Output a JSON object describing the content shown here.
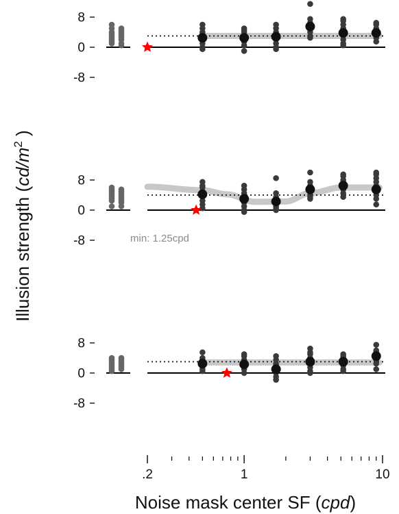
{
  "chart_data": {
    "type": "scatter",
    "ylabel": "Illusion strength (cd/m²)",
    "ylabel_prefix": "Illusion strength (",
    "ylabel_units": "cd/m",
    "ylabel_exp": "2",
    "ylabel_suffix": " )",
    "xlabel": "Noise mask center SF (cpd)",
    "xlabel_prefix": "Noise mask center SF (",
    "xlabel_units": "cpd",
    "xlabel_suffix": ")",
    "x_scale": "log",
    "xlim": [
      0.13,
      11
    ],
    "x_ticks": [
      {
        "value": 0.2,
        "label": ".2"
      },
      {
        "value": 1,
        "label": "1"
      },
      {
        "value": 10,
        "label": "10"
      }
    ],
    "y_ticks": [
      {
        "value": 8,
        "label": "8"
      },
      {
        "value": 0,
        "label": "0"
      },
      {
        "value": -8,
        "label": "-8"
      }
    ],
    "colors": {
      "points": "#3a3a3a",
      "baseline_points": "#666666",
      "mean_marker": "#111111",
      "fit_band": "#c8c8c8",
      "dotted_line": "#111111",
      "star": "#ff0000",
      "axis": "#000000"
    },
    "panels": [
      {
        "ylim": [
          -10,
          12
        ],
        "baseline_level": 3.0,
        "fit_curve": {
          "x": [
            0.5,
            1,
            2,
            4,
            9.5
          ],
          "y": [
            3.0,
            3.0,
            3.0,
            3.0,
            3.0
          ]
        },
        "min_star": {
          "x": 0.2,
          "y": 0
        },
        "annotation": "",
        "baseline_columns": [
          {
            "y": [
              6,
              5,
              4,
              3.5,
              3,
              2.5,
              2,
              1.5,
              1
            ]
          },
          {
            "y": [
              5,
              4.5,
              4,
              3.5,
              3,
              2.5,
              2,
              1,
              0.5
            ]
          }
        ],
        "sf_columns": [
          {
            "x": 0.5,
            "mean": 2.5,
            "y": [
              6,
              5,
              4,
              3.5,
              2.5,
              2,
              1,
              0,
              -0.5
            ]
          },
          {
            "x": 1.0,
            "mean": 2.5,
            "y": [
              5,
              4.5,
              4,
              3,
              2,
              1.5,
              0.5,
              -1
            ]
          },
          {
            "x": 1.7,
            "mean": 2.8,
            "y": [
              6,
              5,
              4,
              3.5,
              3,
              2,
              1,
              0,
              -0.5
            ]
          },
          {
            "x": 3.0,
            "mean": 5.5,
            "y": [
              11.5,
              7.5,
              6.5,
              6,
              5.5,
              5,
              4,
              3,
              2.5
            ]
          },
          {
            "x": 5.2,
            "mean": 3.8,
            "y": [
              7.5,
              7,
              6,
              5,
              4,
              3,
              2,
              1,
              0.5
            ]
          },
          {
            "x": 9.0,
            "mean": 3.8,
            "y": [
              6.5,
              6,
              5,
              4.5,
              4,
              3.5,
              3,
              2.5,
              1.5
            ]
          }
        ]
      },
      {
        "ylim": [
          -10,
          12
        ],
        "baseline_level": 4.0,
        "fit_curve": {
          "x": [
            0.2,
            0.5,
            0.75,
            1.2,
            2.0,
            3.0,
            5.0,
            9.5
          ],
          "y": [
            6.2,
            5.3,
            4.2,
            2.2,
            2.3,
            4.5,
            6.0,
            6.0
          ]
        },
        "min_star": {
          "x": 0.45,
          "y": 0
        },
        "annotation": "min: 1.25cpd",
        "baseline_columns": [
          {
            "y": [
              6,
              5.5,
              5,
              4.5,
              4,
              3.5,
              3,
              2.5,
              1
            ]
          },
          {
            "y": [
              5.5,
              5,
              4.5,
              4,
              3.5,
              3,
              2.5,
              2,
              1
            ]
          }
        ],
        "sf_columns": [
          {
            "x": 0.5,
            "mean": 4.2,
            "y": [
              7.5,
              6.5,
              6,
              5,
              4,
              3.5,
              2.5,
              1.5,
              0.5
            ]
          },
          {
            "x": 1.0,
            "mean": 3.0,
            "y": [
              6.5,
              5.5,
              4.5,
              3.5,
              2.5,
              2,
              1,
              0,
              -0.5
            ]
          },
          {
            "x": 1.7,
            "mean": 2.3,
            "y": [
              8.5,
              4.5,
              3.5,
              3,
              2,
              1,
              0.5,
              0
            ]
          },
          {
            "x": 3.0,
            "mean": 5.5,
            "y": [
              10,
              7.5,
              6.5,
              6,
              5.5,
              5,
              4,
              3.5,
              3
            ]
          },
          {
            "x": 5.2,
            "mean": 6.5,
            "y": [
              9.5,
              9,
              8,
              7.5,
              7,
              6,
              5.5,
              4.5,
              3.5
            ]
          },
          {
            "x": 9.0,
            "mean": 5.5,
            "y": [
              10,
              9.5,
              8.5,
              7.5,
              6.5,
              5.5,
              4,
              3,
              1.5
            ]
          }
        ]
      },
      {
        "ylim": [
          -10,
          12
        ],
        "baseline_level": 3.0,
        "fit_curve": {
          "x": [
            0.5,
            1,
            2,
            4,
            9.5
          ],
          "y": [
            2.8,
            2.8,
            2.8,
            2.8,
            2.8
          ]
        },
        "min_star": {
          "x": 0.75,
          "y": 0
        },
        "annotation": "",
        "baseline_columns": [
          {
            "y": [
              4,
              3.5,
              3,
              2.5,
              2,
              1.5,
              1,
              0.5
            ]
          },
          {
            "y": [
              4,
              3.5,
              3,
              2.5,
              2,
              1.5,
              1
            ]
          }
        ],
        "sf_columns": [
          {
            "x": 0.5,
            "mean": 2.5,
            "y": [
              5.5,
              4,
              3.5,
              3,
              2.5,
              2,
              1,
              0.5
            ]
          },
          {
            "x": 1.0,
            "mean": 2.3,
            "y": [
              5,
              4.5,
              3.5,
              3,
              2,
              1.5,
              1,
              0
            ]
          },
          {
            "x": 1.7,
            "mean": 1.0,
            "y": [
              4.5,
              3.5,
              2.5,
              2,
              1,
              0.5,
              0,
              -1,
              -1.8
            ]
          },
          {
            "x": 3.0,
            "mean": 3.0,
            "y": [
              6.5,
              5.5,
              5,
              4,
              3,
              2.5,
              1.5,
              0.5,
              0
            ]
          },
          {
            "x": 5.2,
            "mean": 3.0,
            "y": [
              5,
              4.5,
              4,
              3.5,
              3,
              2.5,
              2,
              1,
              0.5
            ]
          },
          {
            "x": 9.0,
            "mean": 4.5,
            "y": [
              7.5,
              6,
              5.5,
              5,
              4.5,
              4,
              3.5,
              2.5,
              1
            ]
          }
        ]
      }
    ]
  }
}
